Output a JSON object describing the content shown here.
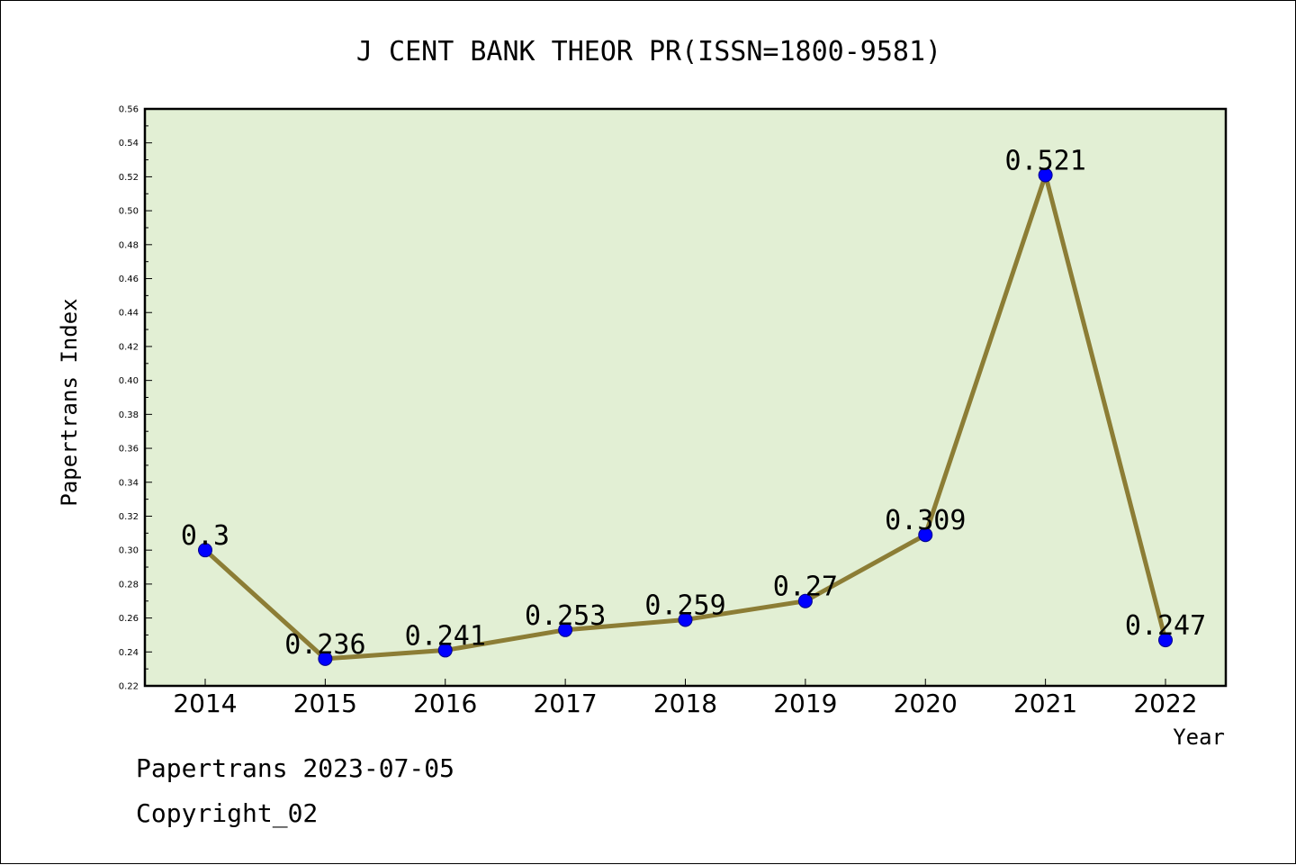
{
  "chart_data": {
    "type": "line",
    "title": "J CENT BANK THEOR PR(ISSN=1800-9581)",
    "xlabel": "Year",
    "ylabel": "Papertrans Index",
    "categories": [
      "2014",
      "2015",
      "2016",
      "2017",
      "2018",
      "2019",
      "2020",
      "2021",
      "2022"
    ],
    "series": [
      {
        "values": [
          0.3,
          0.236,
          0.241,
          0.253,
          0.259,
          0.27,
          0.309,
          0.521,
          0.247
        ],
        "labels": [
          "0.3",
          "0.236",
          "0.241",
          "0.253",
          "0.259",
          "0.27",
          "0.309",
          "0.521",
          "0.247"
        ]
      }
    ],
    "ylim": [
      0.22,
      0.56
    ],
    "yticks": [
      "0.22",
      "0.24",
      "0.26",
      "0.28",
      "0.30",
      "0.32",
      "0.34",
      "0.36",
      "0.38",
      "0.40",
      "0.42",
      "0.44",
      "0.46",
      "0.48",
      "0.50",
      "0.52",
      "0.54",
      "0.56"
    ],
    "grid": false,
    "legend": "none",
    "colors": {
      "plot_background": "#e2efd4",
      "line": "#8c7d35",
      "marker": "#0000ff"
    }
  },
  "footer": {
    "credit": "Papertrans 2023-07-05",
    "copyright": "Copyright_02"
  }
}
